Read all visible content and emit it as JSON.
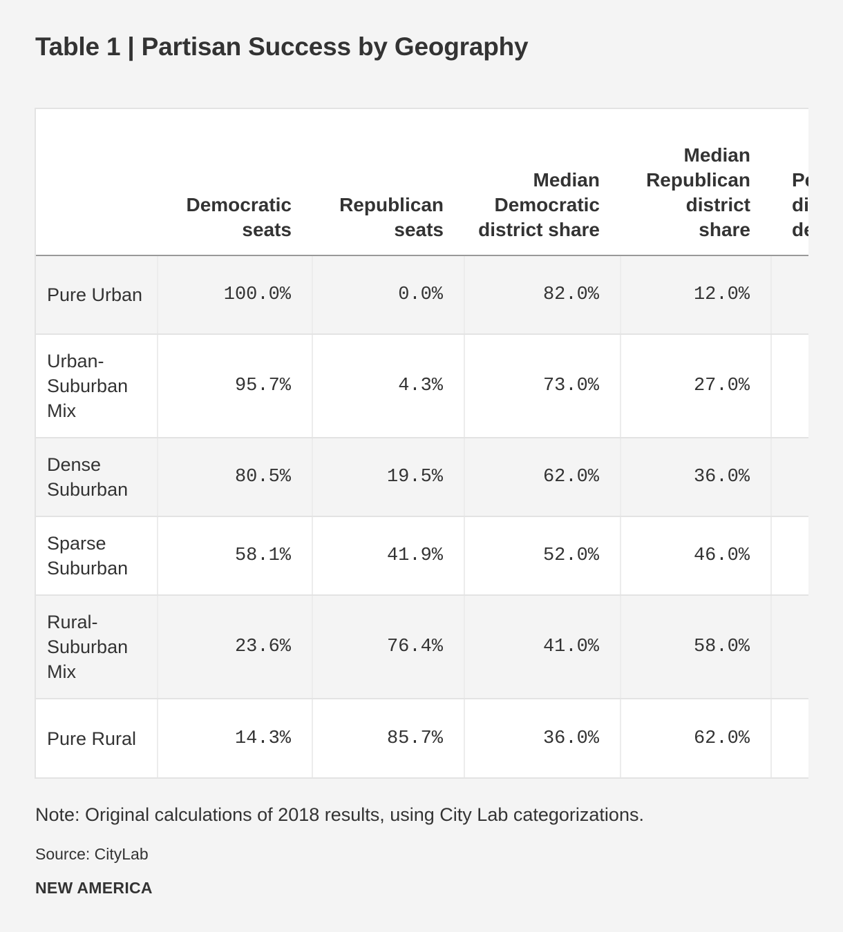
{
  "title": "Table 1 | Partisan Success by Geography",
  "table": {
    "headers": [
      "",
      "Democratic seats",
      "Republican seats",
      "Median Democratic district share",
      "Median Republican district share",
      "Percent of districts decided by"
    ],
    "partial_header_visible": "P di dc by",
    "rows": [
      {
        "label": "Pure Urban",
        "dem_seats": "100.0%",
        "rep_seats": "0.0%",
        "median_dem": "82.0%",
        "median_rep": "12.0%"
      },
      {
        "label": "Urban-Suburban Mix",
        "dem_seats": "95.7%",
        "rep_seats": "4.3%",
        "median_dem": "73.0%",
        "median_rep": "27.0%"
      },
      {
        "label": "Dense Suburban",
        "dem_seats": "80.5%",
        "rep_seats": "19.5%",
        "median_dem": "62.0%",
        "median_rep": "36.0%"
      },
      {
        "label": "Sparse Suburban",
        "dem_seats": "58.1%",
        "rep_seats": "41.9%",
        "median_dem": "52.0%",
        "median_rep": "46.0%"
      },
      {
        "label": "Rural-Suburban Mix",
        "dem_seats": "23.6%",
        "rep_seats": "76.4%",
        "median_dem": "41.0%",
        "median_rep": "58.0%"
      },
      {
        "label": "Pure Rural",
        "dem_seats": "14.3%",
        "rep_seats": "85.7%",
        "median_dem": "36.0%",
        "median_rep": "62.0%"
      }
    ]
  },
  "note": "Note: Original calculations of 2018 results, using City Lab categorizations.",
  "source": "Source: CityLab",
  "brand": "NEW AMERICA"
}
